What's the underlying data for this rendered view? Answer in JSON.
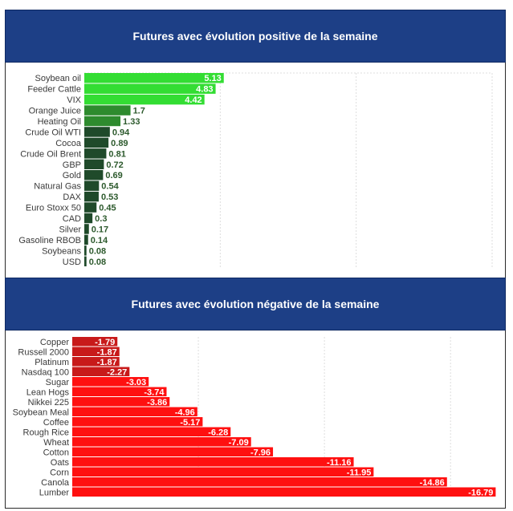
{
  "panels": {
    "positive_title": "Futures avec évolution positive de la semaine",
    "negative_title": "Futures avec évolution négative de la semaine"
  },
  "chart_data": [
    {
      "type": "bar",
      "orientation": "horizontal",
      "title": "Futures avec évolution positive de la semaine",
      "categories": [
        "Soybean oil",
        "Feeder Cattle",
        "VIX",
        "Orange Juice",
        "Heating Oil",
        "Crude Oil WTI",
        "Cocoa",
        "Crude Oil Brent",
        "GBP",
        "Gold",
        "Natural Gas",
        "DAX",
        "Euro Stoxx 50",
        "CAD",
        "Silver",
        "Gasoline RBOB",
        "Soybeans",
        "USD"
      ],
      "values": [
        5.13,
        4.83,
        4.42,
        1.7,
        1.33,
        0.94,
        0.89,
        0.81,
        0.72,
        0.69,
        0.54,
        0.53,
        0.45,
        0.3,
        0.17,
        0.14,
        0.08,
        0.08
      ],
      "xlim": [
        0,
        15
      ],
      "grid": true,
      "colors": {
        "bright": "#33dd33",
        "mid": "#2e8b2e",
        "dark": "#1f4a2a",
        "text_light": "#ffffff",
        "text_dark": "#2d5a2d"
      }
    },
    {
      "type": "bar",
      "orientation": "horizontal",
      "title": "Futures avec évolution négative de la semaine",
      "categories": [
        "Copper",
        "Russell 2000",
        "Platinum",
        "Nasdaq 100",
        "Sugar",
        "Lean Hogs",
        "Nikkei 225",
        "Soybean Meal",
        "Coffee",
        "Rough Rice",
        "Wheat",
        "Cotton",
        "Oats",
        "Corn",
        "Canola",
        "Lumber"
      ],
      "values": [
        -1.79,
        -1.87,
        -1.87,
        -2.27,
        -3.03,
        -3.74,
        -3.86,
        -4.96,
        -5.17,
        -6.28,
        -7.09,
        -7.96,
        -11.16,
        -11.95,
        -14.86,
        -16.79
      ],
      "xlim": [
        0,
        17
      ],
      "grid": true,
      "colors": {
        "dark": "#c81a1a",
        "bright": "#ff1010",
        "text": "#ffffff"
      }
    }
  ]
}
